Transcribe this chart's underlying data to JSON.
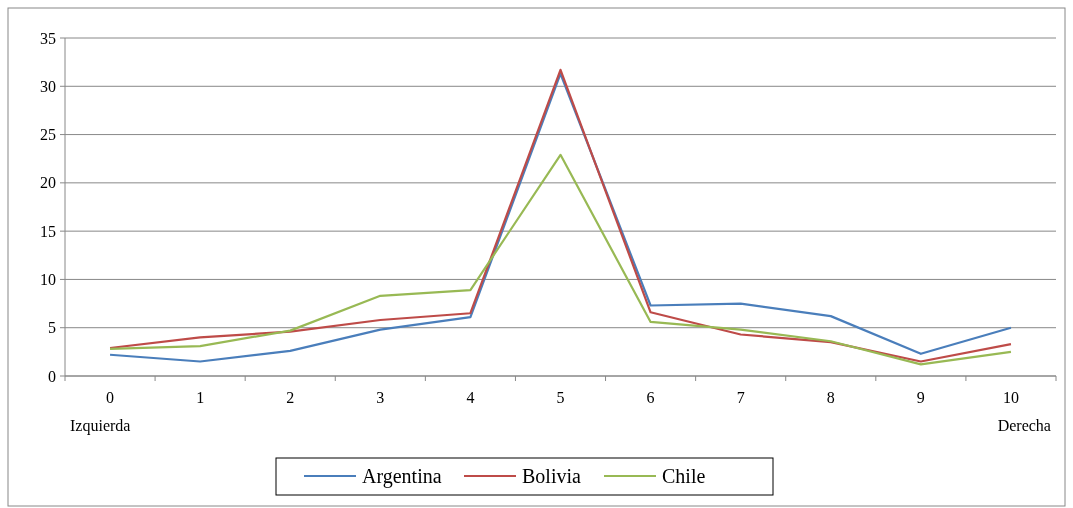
{
  "chart_data": {
    "type": "line",
    "categories": [
      "0",
      "1",
      "2",
      "3",
      "4",
      "5",
      "6",
      "7",
      "8",
      "9",
      "10"
    ],
    "series": [
      {
        "name": "Argentina",
        "color": "#4a7ebb",
        "values": [
          2.2,
          1.5,
          2.6,
          4.8,
          6.1,
          31.3,
          7.3,
          7.5,
          6.2,
          2.3,
          5.0
        ]
      },
      {
        "name": "Bolivia",
        "color": "#be4b48",
        "values": [
          2.9,
          4.0,
          4.6,
          5.8,
          6.5,
          31.7,
          6.6,
          4.3,
          3.5,
          1.5,
          3.3
        ]
      },
      {
        "name": "Chile",
        "color": "#98b954",
        "values": [
          2.8,
          3.1,
          4.7,
          8.3,
          8.9,
          22.9,
          5.6,
          4.8,
          3.6,
          1.2,
          2.5
        ]
      }
    ],
    "annotations": [
      "Izquierda",
      "Derecha"
    ],
    "ylim": [
      0,
      35
    ],
    "yticks": [
      0,
      5,
      10,
      15,
      20,
      25,
      30,
      35
    ],
    "grid": "y",
    "legend": "bottom",
    "marker": "none",
    "line_style": "solid"
  }
}
